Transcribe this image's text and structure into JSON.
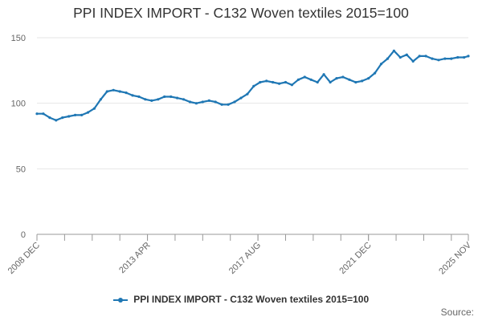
{
  "chart_data": {
    "type": "line",
    "title": "PPI INDEX IMPORT - C132 Woven textiles 2015=100",
    "xlabel": "",
    "ylabel": "",
    "ylim": [
      0,
      150
    ],
    "yticks": [
      0,
      50,
      100,
      150
    ],
    "x_tick_labels": [
      "2008 DEC",
      "2013 APR",
      "2017 AUG",
      "2021 DEC",
      "2025 NOV"
    ],
    "x_tick_months": [
      "2008-12",
      "2013-04",
      "2017-08",
      "2021-12",
      "2025-11"
    ],
    "grid": "horizontal",
    "legend_position": "bottom",
    "series": [
      {
        "name": "PPI INDEX IMPORT - C132 Woven textiles 2015=100",
        "color": "#1f77b4",
        "points": [
          [
            "2008-12",
            92
          ],
          [
            "2009-03",
            92
          ],
          [
            "2009-06",
            89
          ],
          [
            "2009-09",
            87
          ],
          [
            "2009-12",
            89
          ],
          [
            "2010-03",
            90
          ],
          [
            "2010-06",
            91
          ],
          [
            "2010-09",
            91
          ],
          [
            "2010-12",
            93
          ],
          [
            "2011-03",
            96
          ],
          [
            "2011-06",
            103
          ],
          [
            "2011-09",
            109
          ],
          [
            "2011-12",
            110
          ],
          [
            "2012-03",
            109
          ],
          [
            "2012-06",
            108
          ],
          [
            "2012-09",
            106
          ],
          [
            "2012-12",
            105
          ],
          [
            "2013-03",
            103
          ],
          [
            "2013-06",
            102
          ],
          [
            "2013-09",
            103
          ],
          [
            "2013-12",
            105
          ],
          [
            "2014-03",
            105
          ],
          [
            "2014-06",
            104
          ],
          [
            "2014-09",
            103
          ],
          [
            "2014-12",
            101
          ],
          [
            "2015-03",
            100
          ],
          [
            "2015-06",
            101
          ],
          [
            "2015-09",
            102
          ],
          [
            "2015-12",
            101
          ],
          [
            "2016-03",
            99
          ],
          [
            "2016-06",
            99
          ],
          [
            "2016-09",
            101
          ],
          [
            "2016-12",
            104
          ],
          [
            "2017-03",
            107
          ],
          [
            "2017-06",
            113
          ],
          [
            "2017-09",
            116
          ],
          [
            "2017-12",
            117
          ],
          [
            "2018-03",
            116
          ],
          [
            "2018-06",
            115
          ],
          [
            "2018-09",
            116
          ],
          [
            "2018-12",
            114
          ],
          [
            "2019-03",
            118
          ],
          [
            "2019-06",
            120
          ],
          [
            "2019-09",
            118
          ],
          [
            "2019-12",
            116
          ],
          [
            "2020-03",
            122
          ],
          [
            "2020-06",
            116
          ],
          [
            "2020-09",
            119
          ],
          [
            "2020-12",
            120
          ],
          [
            "2021-03",
            118
          ],
          [
            "2021-06",
            116
          ],
          [
            "2021-09",
            117
          ],
          [
            "2021-12",
            119
          ],
          [
            "2022-03",
            123
          ],
          [
            "2022-06",
            130
          ],
          [
            "2022-09",
            134
          ],
          [
            "2022-12",
            140
          ],
          [
            "2023-03",
            135
          ],
          [
            "2023-06",
            137
          ],
          [
            "2023-09",
            132
          ],
          [
            "2023-12",
            136
          ],
          [
            "2024-03",
            136
          ],
          [
            "2024-06",
            134
          ],
          [
            "2024-09",
            133
          ],
          [
            "2024-12",
            134
          ],
          [
            "2025-03",
            134
          ],
          [
            "2025-06",
            135
          ],
          [
            "2025-09",
            135
          ],
          [
            "2025-11",
            136
          ]
        ]
      }
    ]
  },
  "source_label": "Source:"
}
